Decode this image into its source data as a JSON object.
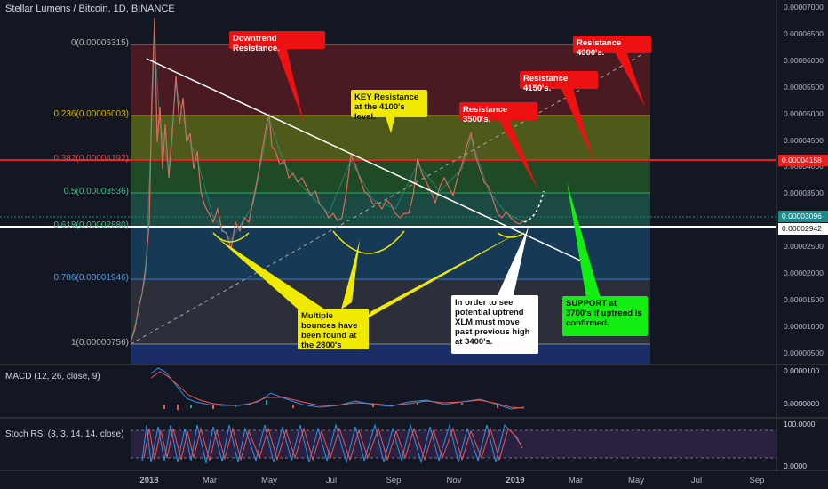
{
  "header": {
    "title": "Stellar Lumens / Bitcoin, 1D, BINANCE"
  },
  "fib_levels": [
    {
      "label": "0(0.00006315)",
      "value": 6.315e-05
    },
    {
      "label": "0.236(0.00005003)",
      "value": 5.003e-05
    },
    {
      "label": "0.382(0.00004192)",
      "value": 4.192e-05
    },
    {
      "label": "0.5(0.00003536)",
      "value": 3.536e-05
    },
    {
      "label": "0.618(0.00002880)",
      "value": 2.88e-05
    },
    {
      "label": "0.786(0.00001946)",
      "value": 1.946e-05
    },
    {
      "label": "1(0.00000756)",
      "value": 7.56e-06
    }
  ],
  "price_axis": {
    "ticks": [
      "0.00007000",
      "0.00006500",
      "0.00006000",
      "0.00005500",
      "0.00005000",
      "0.00004500",
      "0.00004000",
      "0.00003500",
      "0.00003000",
      "0.00002500",
      "0.00002000",
      "0.00001500",
      "0.00001000",
      "0.00000500"
    ],
    "tags": [
      {
        "text": "0.00004158",
        "value": 4.158e-05,
        "color": "#e52020",
        "text_color": "#ffffff"
      },
      {
        "text": "0.00003096",
        "value": 3.096e-05,
        "color": "#1b8a8a",
        "text_color": "#ffffff"
      },
      {
        "text": "0.00002942",
        "value": 2.942e-05,
        "color": "#ffffff",
        "text_color": "#111111"
      }
    ]
  },
  "time_axis": {
    "labels": [
      "2018",
      "Mar",
      "May",
      "Jul",
      "Sep",
      "Nov",
      "2019",
      "Mar",
      "May",
      "Jul",
      "Sep"
    ]
  },
  "annotations": {
    "downtrend": "Downtrend Resistance.",
    "key_resistance": "KEY Resistance at the 4100's level.",
    "res_3500": "Resistance 3500's.",
    "res_4150": "Resistance 4150's.",
    "res_4900": "Resistance 4900's.",
    "bounces": "Multiple bounces have been found at the 2800's",
    "uptrend": "In order to see potential uptrend XLM must move past previous high at 3400's.",
    "support": "SUPPORT at 3700's if uptrend is confirmed."
  },
  "macd": {
    "label": "MACD (12, 26, close, 9)",
    "ticks": [
      "0.0000100",
      "0.0000000"
    ]
  },
  "stoch": {
    "label": "Stoch RSI (3, 3, 14, 14, close)",
    "ticks": [
      "100.0000",
      "0.0000"
    ]
  },
  "colors": {
    "background": "#131722",
    "candle_up": "#26a69a",
    "candle_down": "#ef5350",
    "trendline": "#ffffff",
    "fib_red": "#e52020",
    "fib_green": "#2e8b57",
    "fib_blue": "#1e5fa0"
  }
}
